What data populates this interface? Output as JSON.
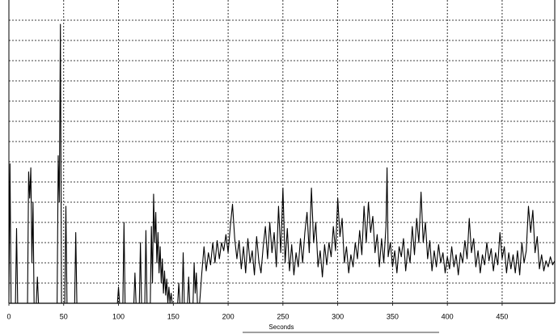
{
  "chart_data": {
    "type": "line",
    "x_label": "Seconds",
    "color": "#000000",
    "xlim": [
      0,
      498
    ],
    "xticks": [
      0,
      50,
      100,
      150,
      200,
      250,
      300,
      350,
      400,
      450
    ],
    "ylim": [
      0,
      15
    ],
    "yticks": [
      1,
      2,
      3,
      4,
      5,
      6,
      7,
      8,
      9,
      10,
      11,
      12,
      13,
      14
    ],
    "grid": true,
    "x": [
      0,
      1,
      2,
      6,
      7,
      8,
      17,
      18,
      19,
      20,
      21,
      22,
      23,
      25,
      26,
      27,
      44,
      45,
      46,
      47,
      48,
      51,
      52,
      53,
      60,
      61,
      62,
      99,
      100,
      101,
      104,
      105,
      106,
      114,
      115,
      116,
      119,
      120,
      121,
      124,
      125,
      126,
      129,
      130,
      131,
      132,
      133,
      134,
      135,
      136,
      137,
      138,
      139,
      140,
      141,
      142,
      143,
      144,
      145,
      146,
      147,
      148,
      149,
      154,
      155,
      156,
      158,
      159,
      160,
      163,
      164,
      165,
      168,
      169,
      170,
      171,
      172,
      174,
      176,
      178,
      180,
      182,
      184,
      186,
      188,
      190,
      192,
      194,
      196,
      198,
      200,
      202,
      204,
      206,
      208,
      210,
      212,
      214,
      216,
      218,
      220,
      222,
      224,
      226,
      228,
      230,
      232,
      234,
      236,
      238,
      240,
      242,
      244,
      246,
      248,
      250,
      252,
      254,
      256,
      258,
      260,
      262,
      264,
      266,
      268,
      270,
      272,
      274,
      276,
      278,
      280,
      282,
      284,
      286,
      288,
      290,
      292,
      294,
      296,
      298,
      300,
      302,
      304,
      306,
      308,
      310,
      312,
      314,
      316,
      318,
      320,
      322,
      324,
      326,
      328,
      330,
      332,
      334,
      336,
      338,
      340,
      342,
      344,
      345,
      346,
      348,
      350,
      352,
      354,
      356,
      358,
      360,
      362,
      364,
      366,
      368,
      370,
      372,
      374,
      376,
      378,
      380,
      382,
      384,
      386,
      388,
      390,
      392,
      394,
      396,
      398,
      400,
      402,
      404,
      406,
      408,
      410,
      412,
      414,
      416,
      418,
      420,
      422,
      424,
      426,
      428,
      430,
      432,
      434,
      436,
      438,
      440,
      442,
      444,
      446,
      448,
      450,
      452,
      454,
      456,
      458,
      460,
      462,
      464,
      466,
      468,
      470,
      472,
      474,
      476,
      478,
      480,
      482,
      484,
      486,
      488,
      490,
      492,
      494,
      496,
      498
    ],
    "values": [
      0,
      6.9,
      0,
      0,
      3.7,
      0,
      0,
      6.5,
      5.2,
      6.7,
      2,
      5,
      0,
      0,
      1.3,
      0,
      0,
      7.3,
      5,
      13.8,
      0,
      0,
      4.8,
      0,
      0,
      3.5,
      0,
      0,
      0.8,
      0,
      0,
      4,
      0,
      0,
      1.5,
      0,
      0,
      3,
      0,
      0,
      3.6,
      0,
      0,
      3.8,
      1,
      5.4,
      3,
      4.5,
      2,
      3.5,
      1.5,
      2.8,
      1,
      2.2,
      0.5,
      1.6,
      0.4,
      1.2,
      0,
      0.8,
      0,
      0.5,
      0,
      0,
      1,
      0,
      0,
      2.5,
      0,
      0,
      1.3,
      0,
      0,
      2,
      0.5,
      1.5,
      0,
      0,
      1.5,
      2.8,
      1.6,
      2.5,
      1.9,
      3,
      2,
      3.1,
      2.2,
      3,
      2.6,
      3.4,
      2.5,
      3.8,
      4.9,
      3.2,
      2.2,
      3.1,
      1.7,
      2.8,
      1.5,
      3.2,
      2,
      2.6,
      1.4,
      3.3,
      2.1,
      1.5,
      2.8,
      3.8,
      2.2,
      4,
      2.5,
      3.5,
      1.8,
      4.8,
      2.5,
      5.7,
      2,
      3.7,
      1.6,
      2.9,
      1.4,
      2.5,
      1.8,
      3.2,
      2,
      3.5,
      4.5,
      2.5,
      5.7,
      3,
      4,
      1.8,
      2.6,
      1.3,
      2.9,
      1.9,
      3,
      2.3,
      3.8,
      2.6,
      5.2,
      3.3,
      4.2,
      2,
      2.8,
      1.5,
      2.4,
      1.8,
      3,
      2.2,
      3.6,
      2.4,
      4.8,
      3,
      5,
      3.5,
      4.3,
      2.5,
      3.4,
      1.8,
      3.2,
      2,
      3.8,
      6.7,
      2.3,
      3,
      1.8,
      2.6,
      1.5,
      2.8,
      2.3,
      3.2,
      1.6,
      2.7,
      2,
      3.8,
      2.4,
      4.2,
      3,
      5.5,
      3,
      4,
      2.2,
      3.1,
      1.6,
      2.6,
      1.8,
      2.9,
      2,
      2.5,
      1.5,
      2.3,
      1.7,
      2.8,
      1.8,
      2.4,
      1.4,
      2.5,
      2,
      3.1,
      2.2,
      4.2,
      2.5,
      3.2,
      1.8,
      2.6,
      1.5,
      2.4,
      1.9,
      3,
      2.1,
      2.7,
      1.6,
      2.5,
      1.9,
      3.5,
      2.2,
      2.8,
      1.5,
      2.5,
      1.7,
      2.4,
      1.5,
      2.6,
      1.4,
      3,
      2,
      2.6,
      4.8,
      3.5,
      4.6,
      2.5,
      3.3,
      1.7,
      2.4,
      1.6,
      2.1,
      1.8,
      2.3,
      1.9,
      2.1
    ]
  }
}
